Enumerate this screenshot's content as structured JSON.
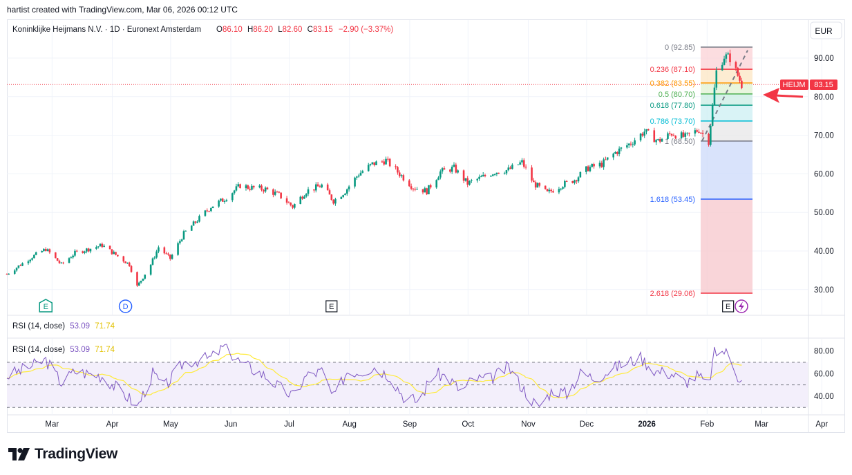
{
  "header": {
    "caption": "hartist created with TradingView.com, Mar 06, 2026 00:12 UTC"
  },
  "brand": {
    "name": "TradingView"
  },
  "symbol": {
    "name": "Koninklijke Heijmans N.V. · 1D · Euronext Amsterdam",
    "o_label": "O",
    "o": "86.10",
    "h_label": "H",
    "h": "86.20",
    "l_label": "L",
    "l": "82.60",
    "c_label": "C",
    "c": "83.15",
    "change": "−2.90 (−3.37%)",
    "ticker": "HEIJM",
    "last": "83.15"
  },
  "currency": "EUR",
  "colors": {
    "up": "#089981",
    "down": "#f23645",
    "rsi_line": "#7e57c2",
    "rsi_ma": "#ffeb3b",
    "arrow": "#f23645",
    "fib_neg": "#f7cbd0",
    "fib_blue": "#cfdcfa"
  },
  "events": [
    {
      "label": "E",
      "month": "Mar",
      "day": 12,
      "style": "green"
    },
    {
      "label": "D",
      "month": "Apr",
      "day": 22,
      "style": "blue"
    },
    {
      "label": "E",
      "month": "Aug",
      "day": 6,
      "style": "dark"
    },
    {
      "label": "E",
      "month": "Feb",
      "day": 26,
      "style": "dark"
    }
  ],
  "chart_data": [
    {
      "type": "candlestick",
      "title": "Koninklijke Heijmans N.V. · 1D · Euronext Amsterdam",
      "y_axis_ticks": [
        "90.00",
        "80.00",
        "70.00",
        "60.00",
        "50.00",
        "40.00",
        "30.00"
      ],
      "ylim": [
        25.5,
        95
      ],
      "x_axis_ticks": [
        "Mar",
        "Apr",
        "May",
        "Jun",
        "Jul",
        "Aug",
        "Sep",
        "Oct",
        "Nov",
        "Dec",
        "2026",
        "Feb",
        "Mar",
        "Apr"
      ],
      "x_start": "2025-02-20",
      "x_end": "2026-04-08",
      "close_path": [
        [
          "2025-02-20",
          34.0
        ],
        [
          "2025-03-05",
          38.5
        ],
        [
          "2025-03-12",
          40.5
        ],
        [
          "2025-03-20",
          36.5
        ],
        [
          "2025-03-27",
          39.5
        ],
        [
          "2025-04-10",
          41.5
        ],
        [
          "2025-04-17",
          39.0
        ],
        [
          "2025-04-24",
          36.5
        ],
        [
          "2025-04-28",
          30.8
        ],
        [
          "2025-05-05",
          36.5
        ],
        [
          "2025-05-09",
          41.0
        ],
        [
          "2025-05-15",
          38.0
        ],
        [
          "2025-05-22",
          44.5
        ],
        [
          "2025-06-05",
          51.5
        ],
        [
          "2025-06-12",
          53.5
        ],
        [
          "2025-06-20",
          57.0
        ],
        [
          "2025-06-24",
          56.5
        ],
        [
          "2025-07-03",
          56.0
        ],
        [
          "2025-07-10",
          54.5
        ],
        [
          "2025-07-17",
          51.5
        ],
        [
          "2025-07-24",
          55.5
        ],
        [
          "2025-08-01",
          57.0
        ],
        [
          "2025-08-07",
          53.0
        ],
        [
          "2025-08-13",
          55.5
        ],
        [
          "2025-08-20",
          60.0
        ],
        [
          "2025-08-27",
          62.5
        ],
        [
          "2025-09-03",
          63.5
        ],
        [
          "2025-09-10",
          60.0
        ],
        [
          "2025-09-17",
          56.5
        ],
        [
          "2025-09-24",
          55.5
        ],
        [
          "2025-10-01",
          60.5
        ],
        [
          "2025-10-08",
          61.5
        ],
        [
          "2025-10-15",
          57.5
        ],
        [
          "2025-10-22",
          59.0
        ],
        [
          "2025-10-29",
          60.5
        ],
        [
          "2025-11-05",
          61.0
        ],
        [
          "2025-11-12",
          63.0
        ],
        [
          "2025-11-18",
          57.5
        ],
        [
          "2025-11-25",
          55.0
        ],
        [
          "2025-12-02",
          57.0
        ],
        [
          "2025-12-09",
          58.5
        ],
        [
          "2025-12-16",
          61.5
        ],
        [
          "2025-12-23",
          62.5
        ],
        [
          "2025-12-30",
          65.5
        ],
        [
          "2026-01-07",
          68.0
        ],
        [
          "2026-01-14",
          71.0
        ],
        [
          "2026-01-21",
          68.5
        ],
        [
          "2026-01-28",
          70.5
        ],
        [
          "2026-02-04",
          69.5
        ],
        [
          "2026-02-11",
          71.5
        ],
        [
          "2026-02-16",
          68.5
        ],
        [
          "2026-02-18",
          77.5
        ],
        [
          "2026-02-20",
          86.5
        ],
        [
          "2026-02-24",
          90.5
        ],
        [
          "2026-02-27",
          90.0
        ],
        [
          "2026-03-03",
          85.5
        ],
        [
          "2026-03-05",
          83.15
        ]
      ]
    },
    {
      "type": "fibonacci_retracement",
      "levels": [
        {
          "ratio": "0",
          "price": 92.85,
          "label": "0 (92.85)",
          "color": "#787b86"
        },
        {
          "ratio": "0.236",
          "price": 87.1,
          "label": "0.236 (87.10)",
          "color": "#f23645"
        },
        {
          "ratio": "0.382",
          "price": 83.55,
          "label": "0.382 (83.55)",
          "color": "#ff9800"
        },
        {
          "ratio": "0.5",
          "price": 80.7,
          "label": "0.5 (80.70)",
          "color": "#4caf50"
        },
        {
          "ratio": "0.618",
          "price": 77.8,
          "label": "0.618 (77.80)",
          "color": "#089981"
        },
        {
          "ratio": "0.786",
          "price": 73.7,
          "label": "0.786 (73.70)",
          "color": "#00bcd4"
        },
        {
          "ratio": "1",
          "price": 68.5,
          "label": "1 (68.50)",
          "color": "#787b86"
        },
        {
          "ratio": "1.618",
          "price": 53.45,
          "label": "1.618 (53.45)",
          "color": "#2962ff"
        },
        {
          "ratio": "2.618",
          "price": 29.06,
          "label": "2.618 (29.06)",
          "color": "#f23645"
        }
      ]
    },
    {
      "type": "line",
      "title": "RSI (14, close)",
      "rsi_value": "53.09",
      "ma_value": "71.74",
      "legend_label": "RSI (14, close)",
      "y_axis_ticks": [
        "80.00",
        "60.00",
        "40.00"
      ],
      "ylim": [
        25,
        90
      ],
      "bands": [
        70,
        50,
        30
      ],
      "series": [
        {
          "values_by_date": [
            [
              "2025-02-20",
              58
            ],
            [
              "2025-03-01",
              64
            ],
            [
              "2025-03-12",
              72
            ],
            [
              "2025-03-20",
              52
            ],
            [
              "2025-03-27",
              62
            ],
            [
              "2025-04-10",
              58
            ],
            [
              "2025-04-24",
              38
            ],
            [
              "2025-04-28",
              30
            ],
            [
              "2025-05-06",
              60
            ],
            [
              "2025-05-12",
              48
            ],
            [
              "2025-05-22",
              70
            ],
            [
              "2025-06-05",
              74
            ],
            [
              "2025-06-12",
              84
            ],
            [
              "2025-06-20",
              70
            ],
            [
              "2025-07-03",
              58
            ],
            [
              "2025-07-10",
              48
            ],
            [
              "2025-07-17",
              40
            ],
            [
              "2025-07-24",
              58
            ],
            [
              "2025-08-01",
              62
            ],
            [
              "2025-08-07",
              38
            ],
            [
              "2025-08-14",
              62
            ],
            [
              "2025-08-21",
              62
            ],
            [
              "2025-08-28",
              66
            ],
            [
              "2025-09-05",
              58
            ],
            [
              "2025-09-12",
              40
            ],
            [
              "2025-09-20",
              35
            ],
            [
              "2025-09-27",
              60
            ],
            [
              "2025-10-04",
              58
            ],
            [
              "2025-10-12",
              44
            ],
            [
              "2025-10-18",
              56
            ],
            [
              "2025-10-26",
              54
            ],
            [
              "2025-11-05",
              66
            ],
            [
              "2025-11-12",
              48
            ],
            [
              "2025-11-20",
              30
            ],
            [
              "2025-11-28",
              46
            ],
            [
              "2025-12-05",
              42
            ],
            [
              "2025-12-12",
              60
            ],
            [
              "2025-12-20",
              56
            ],
            [
              "2025-12-28",
              64
            ],
            [
              "2026-01-05",
              70
            ],
            [
              "2026-01-12",
              74
            ],
            [
              "2026-01-20",
              62
            ],
            [
              "2026-01-28",
              60
            ],
            [
              "2026-02-04",
              52
            ],
            [
              "2026-02-10",
              58
            ],
            [
              "2026-02-16",
              50
            ],
            [
              "2026-02-19",
              78
            ],
            [
              "2026-02-24",
              80
            ],
            [
              "2026-02-28",
              74
            ],
            [
              "2026-03-03",
              58
            ],
            [
              "2026-03-05",
              53.09
            ]
          ]
        }
      ]
    }
  ]
}
